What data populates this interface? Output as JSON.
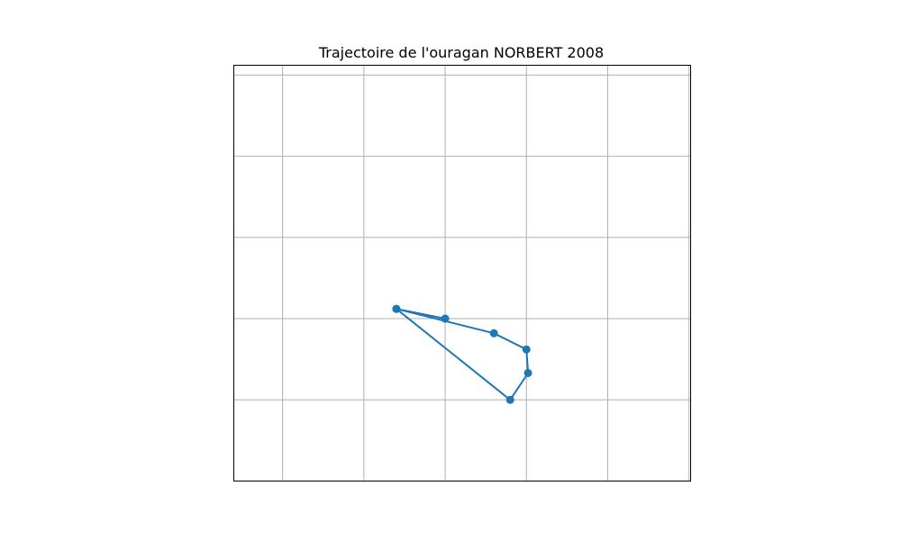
{
  "chart_data": {
    "type": "line",
    "title": "Trajectoire de l'ouragan NORBERT 2008",
    "xlabel": "",
    "ylabel": "",
    "xlim": [
      -118.9,
      -113.28
    ],
    "ylim": [
      16.3,
      21.42
    ],
    "grid": true,
    "x_gridlines": [
      -118.3,
      -117.3,
      -116.3,
      -115.3,
      -114.3,
      -113.3
    ],
    "y_gridlines": [
      21.3,
      20.3,
      19.3,
      18.3,
      17.3
    ],
    "series": [
      {
        "name": "",
        "color": "#1f77b4",
        "marker": "circle",
        "x": [
          -116.3,
          -116.9,
          -115.7,
          -115.3,
          -115.28,
          -115.5,
          -116.9
        ],
        "y": [
          18.3,
          18.42,
          18.12,
          17.92,
          17.63,
          17.3,
          18.42
        ]
      }
    ]
  }
}
